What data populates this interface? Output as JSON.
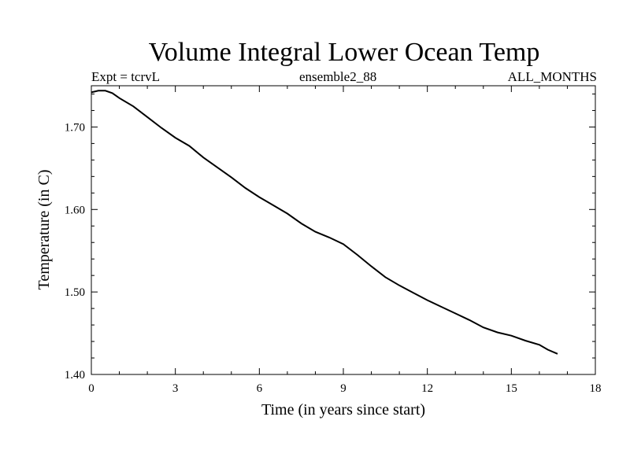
{
  "chart_data": {
    "type": "line",
    "title": "Volume Integral Lower Ocean Temp",
    "subtitle_left": "Expt = tcrvL",
    "subtitle_center": "ensemble2_88",
    "subtitle_right": "ALL_MONTHS",
    "xlabel": "Time (in years since start)",
    "ylabel": "Temperature (in C)",
    "xlim": [
      0,
      18
    ],
    "ylim": [
      1.4,
      1.75
    ],
    "x_ticks": [
      "0",
      "3",
      "6",
      "9",
      "12",
      "15",
      "18"
    ],
    "y_ticks": [
      "1.40",
      "1.50",
      "1.60",
      "1.70"
    ],
    "grid": false,
    "series": [
      {
        "color": "#000000",
        "x": [
          0.0,
          0.25,
          0.5,
          0.75,
          1.0,
          1.5,
          2.0,
          2.5,
          3.0,
          3.5,
          4.0,
          4.5,
          5.0,
          5.5,
          6.0,
          6.5,
          7.0,
          7.5,
          8.0,
          8.5,
          9.0,
          9.5,
          10.0,
          10.5,
          11.0,
          11.5,
          12.0,
          12.5,
          13.0,
          13.5,
          14.0,
          14.5,
          15.0,
          15.5,
          16.0,
          16.3,
          16.65
        ],
        "y": [
          1.742,
          1.744,
          1.744,
          1.741,
          1.735,
          1.725,
          1.712,
          1.699,
          1.687,
          1.677,
          1.663,
          1.651,
          1.639,
          1.626,
          1.615,
          1.605,
          1.595,
          1.583,
          1.573,
          1.566,
          1.558,
          1.545,
          1.531,
          1.518,
          1.508,
          1.499,
          1.49,
          1.482,
          1.474,
          1.466,
          1.457,
          1.451,
          1.447,
          1.441,
          1.436,
          1.43,
          1.425
        ]
      }
    ]
  }
}
